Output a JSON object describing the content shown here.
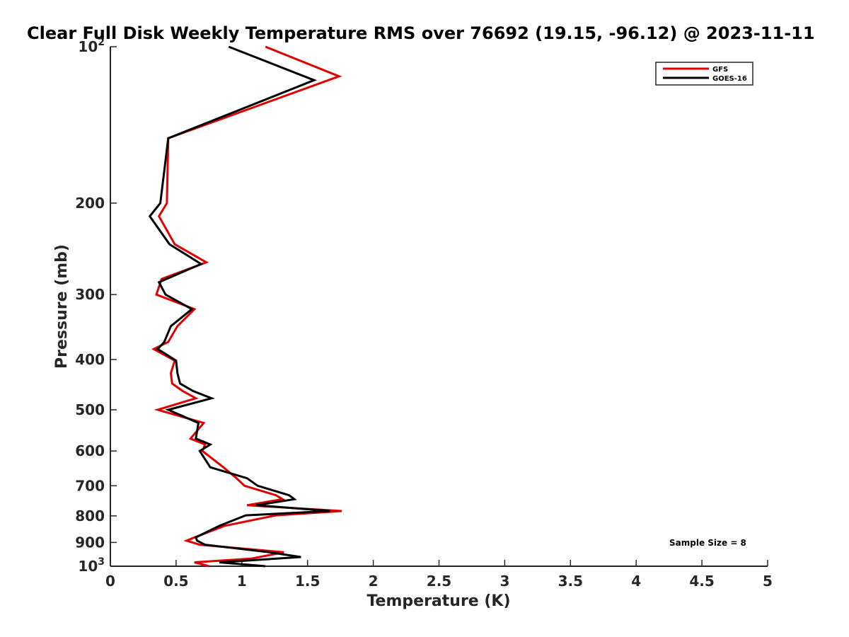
{
  "chart_data": {
    "type": "line",
    "title": "Clear Full Disk Weekly Temperature RMS over 76692 (19.15, -96.12) @ 2023-11-11",
    "xlabel": "Temperature (K)",
    "ylabel": "Pressure (mb)",
    "xlim": [
      0,
      5
    ],
    "ylim": [
      100,
      1000
    ],
    "y_scale": "log",
    "y_reversed": true,
    "grid": false,
    "legend_position": "top-right",
    "x_ticks": [
      "0",
      "0.5",
      "1",
      "1.5",
      "2",
      "2.5",
      "3",
      "3.5",
      "4",
      "4.5",
      "5"
    ],
    "x_tick_values": [
      0,
      0.5,
      1,
      1.5,
      2,
      2.5,
      3,
      3.5,
      4,
      4.5,
      5
    ],
    "y_ticks": [
      {
        "value": 100,
        "base": "10",
        "exp": "2"
      },
      {
        "value": 200,
        "label": "200"
      },
      {
        "value": 300,
        "label": "300"
      },
      {
        "value": 400,
        "label": "400"
      },
      {
        "value": 500,
        "label": "500"
      },
      {
        "value": 600,
        "label": "600"
      },
      {
        "value": 700,
        "label": "700"
      },
      {
        "value": 800,
        "label": "800"
      },
      {
        "value": 900,
        "label": "900"
      },
      {
        "value": 1000,
        "base": "10",
        "exp": "3"
      }
    ],
    "series": [
      {
        "name": "GFS",
        "color": "#e00000",
        "points": [
          [
            1.18,
            100
          ],
          [
            1.74,
            114
          ],
          [
            0.44,
            150
          ],
          [
            0.43,
            200
          ],
          [
            0.37,
            212
          ],
          [
            0.49,
            240
          ],
          [
            0.73,
            260
          ],
          [
            0.39,
            280
          ],
          [
            0.35,
            300
          ],
          [
            0.64,
            320
          ],
          [
            0.51,
            345
          ],
          [
            0.44,
            370
          ],
          [
            0.33,
            382
          ],
          [
            0.49,
            402
          ],
          [
            0.46,
            425
          ],
          [
            0.47,
            445
          ],
          [
            0.55,
            460
          ],
          [
            0.65,
            475
          ],
          [
            0.36,
            500
          ],
          [
            0.71,
            530
          ],
          [
            0.61,
            568
          ],
          [
            0.72,
            583
          ],
          [
            0.7,
            600
          ],
          [
            0.86,
            645
          ],
          [
            0.96,
            677
          ],
          [
            1.02,
            700
          ],
          [
            1.26,
            730
          ],
          [
            1.31,
            743
          ],
          [
            1.04,
            763
          ],
          [
            1.76,
            783
          ],
          [
            1.26,
            798
          ],
          [
            0.87,
            836
          ],
          [
            0.64,
            880
          ],
          [
            0.58,
            893
          ],
          [
            0.68,
            909
          ],
          [
            1.32,
            940
          ],
          [
            1.07,
            967
          ],
          [
            0.64,
            983
          ],
          [
            0.75,
            1000
          ]
        ]
      },
      {
        "name": "GOES-16",
        "color": "#000000",
        "points": [
          [
            0.9,
            100
          ],
          [
            1.55,
            116
          ],
          [
            0.44,
            150
          ],
          [
            0.38,
            200
          ],
          [
            0.3,
            212
          ],
          [
            0.45,
            240
          ],
          [
            0.69,
            262
          ],
          [
            0.37,
            284
          ],
          [
            0.42,
            300
          ],
          [
            0.62,
            320
          ],
          [
            0.46,
            345
          ],
          [
            0.41,
            370
          ],
          [
            0.36,
            382
          ],
          [
            0.5,
            402
          ],
          [
            0.51,
            425
          ],
          [
            0.53,
            445
          ],
          [
            0.63,
            460
          ],
          [
            0.77,
            475
          ],
          [
            0.44,
            500
          ],
          [
            0.67,
            530
          ],
          [
            0.65,
            568
          ],
          [
            0.76,
            583
          ],
          [
            0.68,
            600
          ],
          [
            0.76,
            645
          ],
          [
            1.04,
            677
          ],
          [
            1.12,
            700
          ],
          [
            1.36,
            730
          ],
          [
            1.4,
            743
          ],
          [
            1.11,
            763
          ],
          [
            1.67,
            783
          ],
          [
            1.03,
            798
          ],
          [
            0.83,
            836
          ],
          [
            0.65,
            880
          ],
          [
            0.66,
            893
          ],
          [
            0.72,
            909
          ],
          [
            1.21,
            940
          ],
          [
            1.45,
            960
          ],
          [
            0.83,
            983
          ],
          [
            1.18,
            1000
          ]
        ]
      }
    ],
    "annotation": "Sample Size = 8"
  }
}
